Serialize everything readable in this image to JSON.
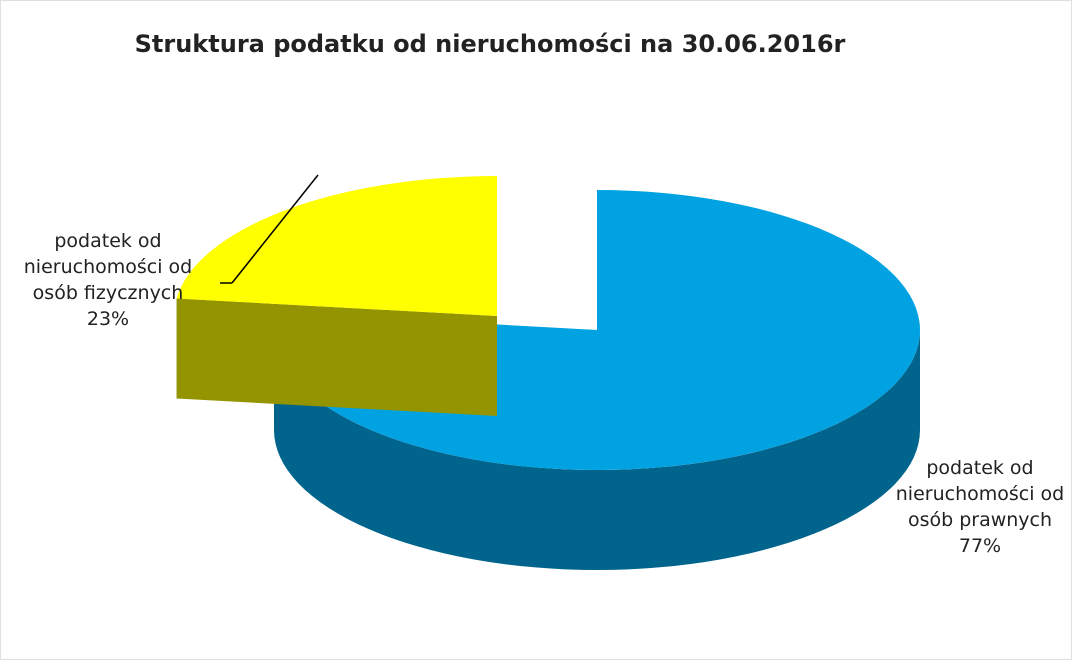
{
  "chart_data": {
    "type": "pie",
    "title": "Struktura podatku od nieruchomości na 30.06.2016r",
    "categories": [
      "podatek od nieruchomości od osób prawnych",
      "podatek od nieruchomości od osób fizycznych"
    ],
    "values": [
      77,
      23
    ],
    "value_labels": [
      "77%",
      "23%"
    ],
    "colors": [
      "#00a2e2",
      "#ffff00"
    ]
  }
}
